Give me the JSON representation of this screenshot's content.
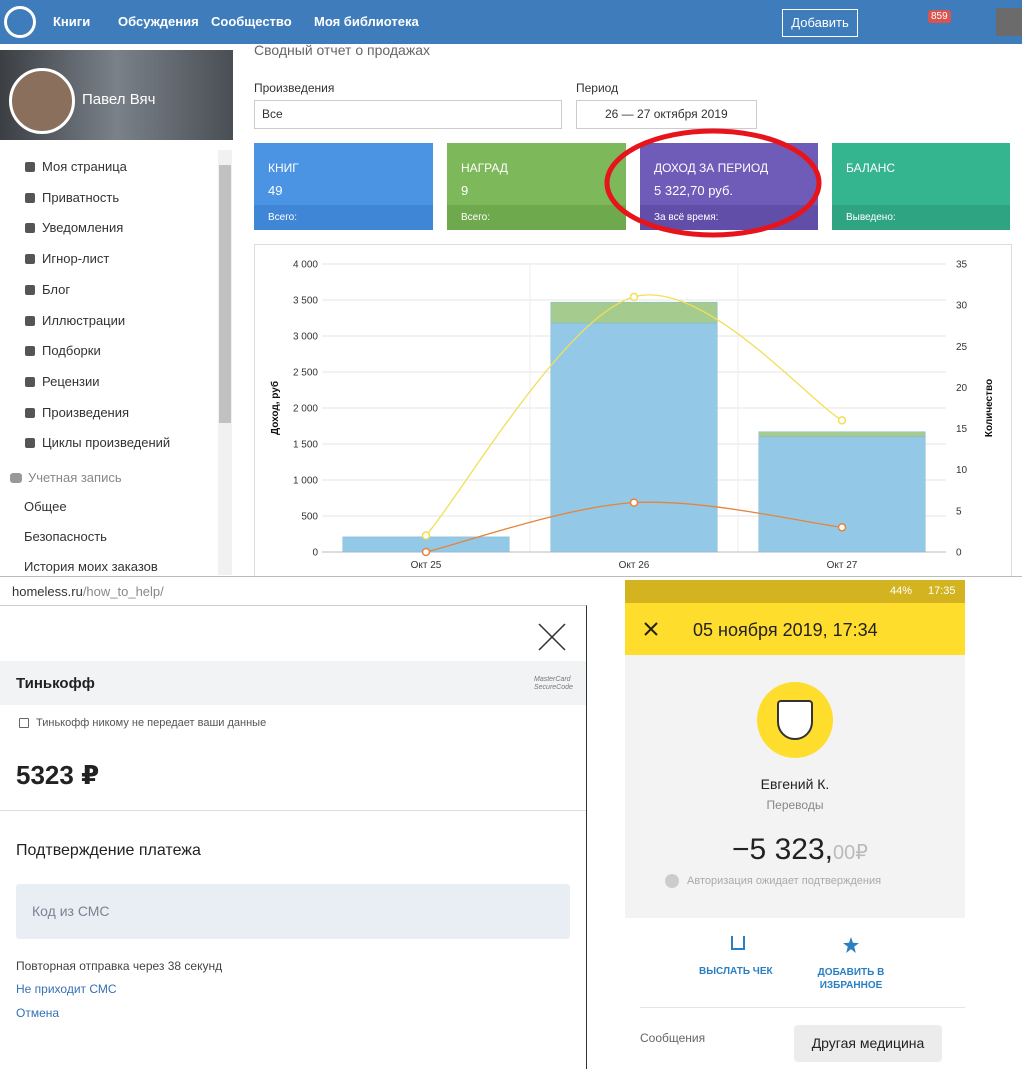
{
  "header": {
    "nav": [
      "Книги",
      "Обсуждения",
      "Сообщество",
      "Моя библиотека"
    ],
    "add_button": "Добавить",
    "notifications": 859
  },
  "sidebar": {
    "user": "Павел Вяч",
    "menu": [
      "Моя страница",
      "Приватность",
      "Уведомления",
      "Игнор-лист",
      "Блог",
      "Иллюстрации",
      "Подборки",
      "Рецензии",
      "Произведения",
      "Циклы произведений"
    ],
    "section": "Учетная запись",
    "account_menu": [
      "Общее",
      "Безопасность",
      "История моих заказов"
    ]
  },
  "report": {
    "title": "Сводный отчет о продажах",
    "works_label": "Произведения",
    "works_value": "Все",
    "period_label": "Период",
    "period_value": "26 — 27 октября 2019",
    "cards": [
      {
        "title": "КНИГ",
        "value": 49,
        "footer": "Всего:"
      },
      {
        "title": "НАГРАД",
        "value": 9,
        "footer": "Всего:"
      },
      {
        "title": "ДОХОД ЗА ПЕРИОД",
        "value": "5 322,70 руб.",
        "footer": "За всё время:"
      },
      {
        "title": "БАЛАНС",
        "footer": "Выведено:"
      }
    ]
  },
  "chart_data": {
    "type": "combo",
    "categories": [
      "Окт 25",
      "Окт 26",
      "Окт 27"
    ],
    "y_label": "Доход, руб",
    "y2_label": "Количество",
    "ylim": [
      0,
      4000
    ],
    "yticks": [
      {
        "value": 0,
        "label": "0"
      },
      {
        "value": 500,
        "label": "500"
      },
      {
        "value": 1000,
        "label": "1 000"
      },
      {
        "value": 1500,
        "label": "1 500"
      },
      {
        "value": 2000,
        "label": "2 000"
      },
      {
        "value": 2500,
        "label": "2 500"
      },
      {
        "value": 3000,
        "label": "3 000"
      },
      {
        "value": 3500,
        "label": "3 500"
      },
      {
        "value": 4000,
        "label": "4 000"
      }
    ],
    "y2lim": [
      0,
      35
    ],
    "y2ticks": [
      0,
      5,
      10,
      15,
      20,
      25,
      30,
      35
    ],
    "grid": true,
    "series": [
      {
        "type": "bar",
        "color": "#93c9e6",
        "values": [
          210,
          3180,
          1600
        ]
      },
      {
        "type": "bar",
        "color": "#a6cb8e",
        "values": [
          0,
          290,
          70
        ]
      },
      {
        "type": "line",
        "axis": "y2",
        "color": "#f2df55",
        "values": [
          2,
          31,
          16
        ]
      },
      {
        "type": "line",
        "axis": "y2",
        "color": "#e5843c",
        "values": [
          0,
          6,
          3
        ]
      }
    ]
  },
  "browser": {
    "url_host": "homeless.ru",
    "url_path": "/how_to_help/"
  },
  "payment": {
    "bank": "Тинькофф",
    "secure_1": "MasterCard",
    "secure_2": "SecureCode",
    "privacy": "Тинькофф никому не передает ваши данные",
    "amount": "5323 ₽",
    "confirm_title": "Подтверждение платежа",
    "sms_placeholder": "Код из СМС",
    "resend": "Повторная отправка через 38 секунд",
    "no_sms": "Не приходит СМС",
    "cancel": "Отмена"
  },
  "phone": {
    "battery": "44%",
    "time": "17:35",
    "date": "05 ноября 2019, 17:34",
    "name": "Евгений К.",
    "category": "Переводы",
    "amount": "−5 323,",
    "amount_cents": "00₽",
    "status": "Авторизация ожидает подтверждения",
    "action_1": "ВЫСЛАТЬ ЧЕК",
    "action_2_1": "ДОБАВИТЬ В",
    "action_2_2": "ИЗБРАННОЕ",
    "messages_label": "Сообщения",
    "message": "Другая медицина"
  }
}
